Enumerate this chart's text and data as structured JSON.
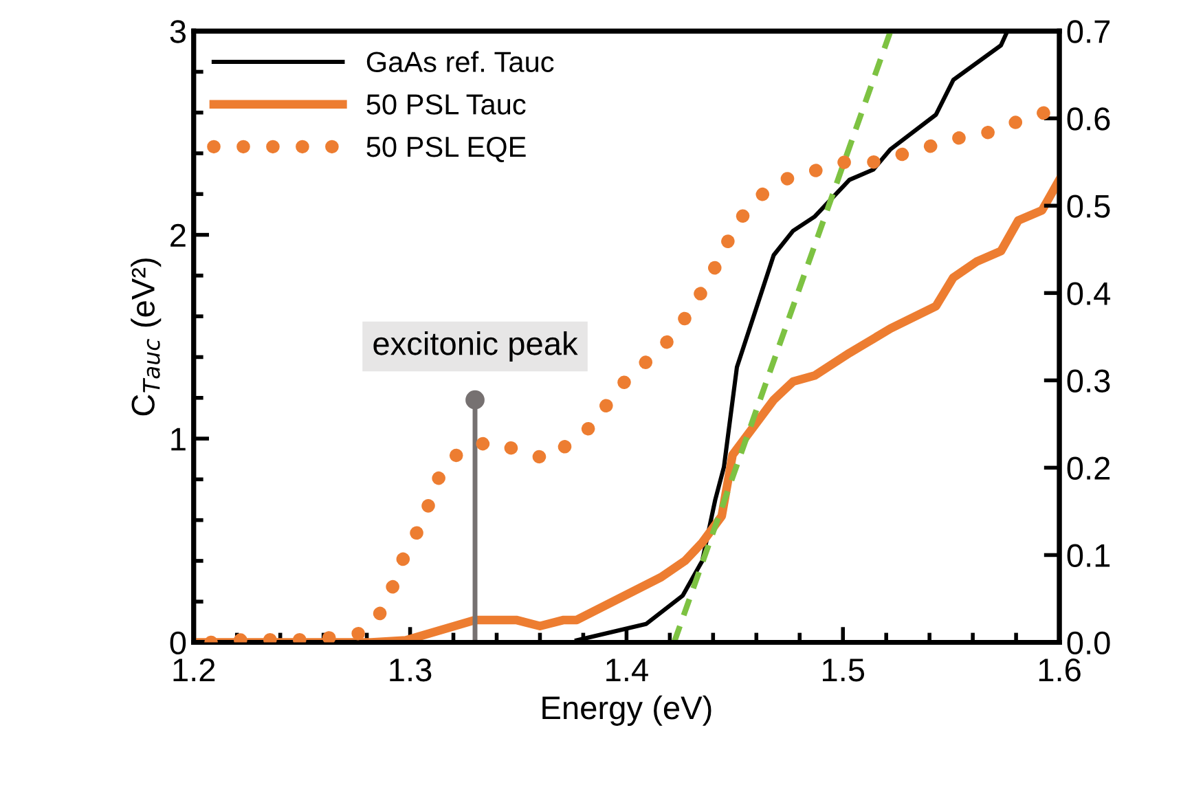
{
  "chart_data": {
    "type": "line",
    "xlabel": "Energy (eV)",
    "ylabel": "C$_{Tauc}$ (eV²)",
    "xlim": [
      1.2,
      1.6
    ],
    "xticks": [
      1.2,
      {
        "value": 1.22,
        "label": null
      },
      {
        "value": 1.24,
        "label": null
      },
      {
        "value": 1.26,
        "label": null
      },
      {
        "value": 1.28,
        "label": null
      },
      1.3,
      {
        "value": 1.32,
        "label": null
      },
      {
        "value": 1.34,
        "label": null
      },
      {
        "value": 1.36,
        "label": null
      },
      {
        "value": 1.38,
        "label": null
      },
      1.4,
      {
        "value": 1.42,
        "label": null
      },
      {
        "value": 1.44,
        "label": null
      },
      {
        "value": 1.46,
        "label": null
      },
      {
        "value": 1.48,
        "label": null
      },
      1.5,
      {
        "value": 1.52,
        "label": null
      },
      {
        "value": 1.54,
        "label": null
      },
      {
        "value": 1.56,
        "label": null
      },
      {
        "value": 1.58,
        "label": null
      },
      1.6
    ],
    "ylim": [
      0,
      3
    ],
    "yticks": [
      0,
      {
        "value": 0.2,
        "label": null
      },
      {
        "value": 0.4,
        "label": null
      },
      {
        "value": 0.6,
        "label": null
      },
      {
        "value": 0.8,
        "label": null
      },
      1,
      {
        "value": 1.2,
        "label": null
      },
      {
        "value": 1.4,
        "label": null
      },
      {
        "value": 1.6,
        "label": null
      },
      {
        "value": 1.8,
        "label": null
      },
      2,
      {
        "value": 2.2,
        "label": null
      },
      {
        "value": 2.4,
        "label": null
      },
      {
        "value": 2.6,
        "label": null
      },
      {
        "value": 2.8,
        "label": null
      },
      3
    ],
    "y2lim": [
      0,
      0.7
    ],
    "y2ticks": [
      {
        "value": 0,
        "label": "0.0"
      },
      0.1,
      0.2,
      0.3,
      0.4,
      0.5,
      0.6,
      0.7
    ],
    "legend": "top left",
    "grid": false,
    "annotations": [
      {
        "text": "excitonic peak",
        "x": 1.33,
        "y": 1.19
      }
    ],
    "series": [
      {
        "name": "GaAs ref. Tauc",
        "color": "#000000",
        "line_style": "solid",
        "x": [
          1.377,
          1.409,
          1.426,
          1.435,
          1.441,
          1.445,
          1.451,
          1.468,
          1.477,
          1.487,
          1.503,
          1.514,
          1.522,
          1.543,
          1.551,
          1.573,
          1.576
        ],
        "values": [
          0.01,
          0.09,
          0.23,
          0.4,
          0.7,
          0.86,
          1.35,
          1.9,
          2.02,
          2.09,
          2.27,
          2.32,
          2.42,
          2.59,
          2.76,
          2.93,
          3.0
        ]
      },
      {
        "name": "50 PSL Tauc",
        "color": "#ed7d31",
        "line_style": "solid",
        "x": [
          1.2,
          1.282,
          1.298,
          1.314,
          1.33,
          1.349,
          1.36,
          1.371,
          1.377,
          1.39,
          1.403,
          1.416,
          1.427,
          1.435,
          1.444,
          1.449,
          1.468,
          1.477,
          1.487,
          1.503,
          1.522,
          1.543,
          1.551,
          1.562,
          1.573,
          1.581,
          1.592,
          1.6
        ],
        "values": [
          0,
          0,
          0.01,
          0.06,
          0.11,
          0.11,
          0.08,
          0.11,
          0.11,
          0.18,
          0.25,
          0.32,
          0.4,
          0.49,
          0.62,
          0.92,
          1.19,
          1.28,
          1.31,
          1.42,
          1.54,
          1.65,
          1.79,
          1.87,
          1.92,
          2.07,
          2.12,
          2.27
        ]
      },
      {
        "name": "50 PSL EQE",
        "color": "#ed7d31",
        "line_style": "dotted",
        "axis": "y2",
        "x": [
          1.208,
          1.223,
          1.236,
          1.249,
          1.262,
          1.276,
          1.286,
          1.292,
          1.297,
          1.304,
          1.309,
          1.315,
          1.324,
          1.337,
          1.35,
          1.363,
          1.375,
          1.385,
          1.393,
          1.403,
          1.414,
          1.424,
          1.432,
          1.439,
          1.445,
          1.451,
          1.461,
          1.473,
          1.487,
          1.501,
          1.515,
          1.529,
          1.543,
          1.557,
          1.57,
          1.584,
          1.598
        ],
        "values": [
          0.0,
          0.003,
          0.003,
          0.003,
          0.005,
          0.01,
          0.033,
          0.064,
          0.097,
          0.13,
          0.16,
          0.2,
          0.22,
          0.23,
          0.22,
          0.21,
          0.23,
          0.25,
          0.28,
          0.31,
          0.33,
          0.36,
          0.39,
          0.42,
          0.45,
          0.48,
          0.51,
          0.53,
          0.54,
          0.55,
          0.55,
          0.56,
          0.57,
          0.58,
          0.585,
          0.6,
          0.61
        ]
      },
      {
        "color": "#7dc242",
        "line_style": "dashed",
        "x": [
          1.422,
          1.522
        ],
        "values": [
          0,
          3.0
        ]
      }
    ]
  }
}
